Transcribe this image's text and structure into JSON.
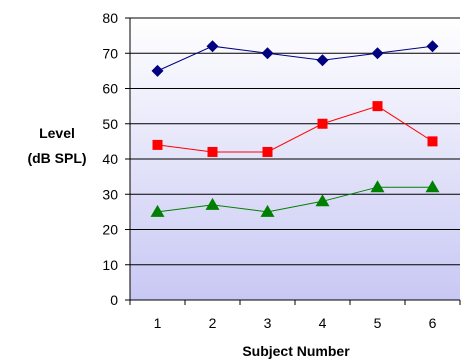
{
  "chart_data": {
    "type": "line",
    "title": "",
    "xlabel": "Subject Number",
    "ylabel": [
      "Level",
      "(dB SPL)"
    ],
    "x": [
      1,
      2,
      3,
      4,
      5,
      6
    ],
    "ylim": [
      0,
      80
    ],
    "yticks": [
      0,
      10,
      20,
      30,
      40,
      50,
      60,
      70,
      80
    ],
    "grid": true,
    "background": "gradient white to lavender",
    "series": [
      {
        "values": [
          65,
          72,
          70,
          68,
          70,
          72
        ],
        "color": "#000080",
        "marker": "diamond"
      },
      {
        "values": [
          44,
          42,
          42,
          50,
          55,
          45
        ],
        "color": "#ff0000",
        "marker": "square"
      },
      {
        "values": [
          25,
          27,
          25,
          28,
          32,
          32
        ],
        "color": "#008000",
        "marker": "triangle"
      }
    ]
  }
}
